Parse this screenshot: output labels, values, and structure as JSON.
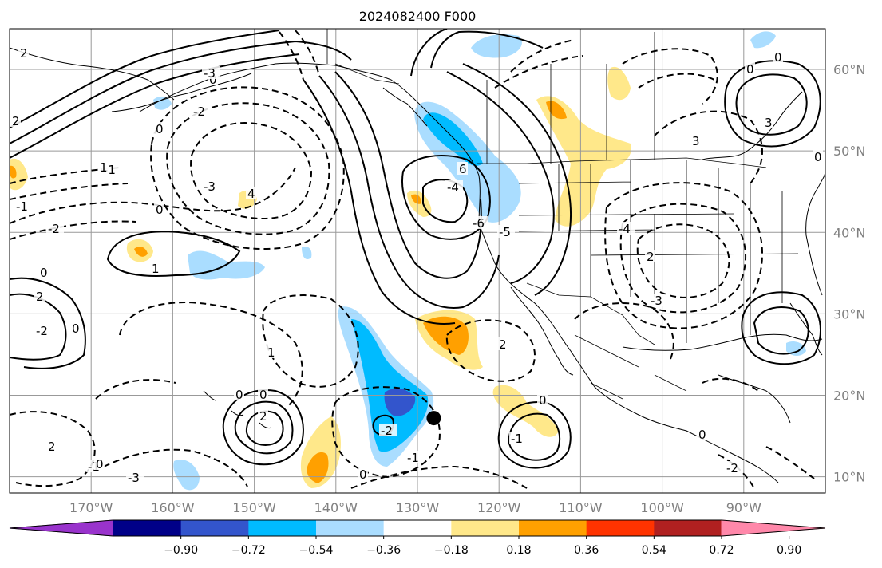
{
  "title": "2024082400 F000",
  "map": {
    "lon_range": [
      -180,
      -80
    ],
    "lat_range": [
      8,
      65
    ],
    "lat_ticks": [
      {
        "value": 10,
        "label": "10°N"
      },
      {
        "value": 20,
        "label": "20°N"
      },
      {
        "value": 30,
        "label": "30°N"
      },
      {
        "value": 40,
        "label": "40°N"
      },
      {
        "value": 50,
        "label": "50°N"
      },
      {
        "value": 60,
        "label": "60°N"
      }
    ],
    "lon_ticks": [
      {
        "value": -170,
        "label": "170°W"
      },
      {
        "value": -160,
        "label": "160°W"
      },
      {
        "value": -150,
        "label": "150°W"
      },
      {
        "value": -140,
        "label": "140°W"
      },
      {
        "value": -130,
        "label": "130°W"
      },
      {
        "value": -120,
        "label": "120°W"
      },
      {
        "value": -110,
        "label": "110°W"
      },
      {
        "value": -100,
        "label": "100°W"
      },
      {
        "value": -90,
        "label": "90°W"
      }
    ],
    "contour_labels": [
      "2",
      "0",
      "-2",
      "-4",
      "-6",
      "-5",
      "-3",
      "-1",
      "1",
      "3",
      "4",
      "6",
      "2",
      "0",
      "-2",
      "-1",
      "0",
      "-3",
      "0",
      "2",
      "-2",
      "0",
      "1",
      "2",
      "0",
      "0",
      "-2",
      "-1",
      "0",
      "-1",
      "2",
      "-3",
      "1",
      "0",
      "0",
      "2",
      "-1",
      "0",
      "-2",
      "-3",
      "-4",
      "2",
      "3",
      "0",
      "0",
      "0"
    ],
    "marker": {
      "lon": -128,
      "lat": 17.2
    }
  },
  "colorbar": {
    "colors": [
      "#9933cc",
      "#000088",
      "#3355cc",
      "#00bbff",
      "#aaddff",
      "#ffffff",
      "#ffe88a",
      "#ffa000",
      "#ff3300",
      "#b02020",
      "#ff88aa"
    ],
    "ticks": [
      "−0.90",
      "−0.72",
      "−0.54",
      "−0.36",
      "−0.18",
      "0.18",
      "0.36",
      "0.54",
      "0.72",
      "0.90"
    ]
  }
}
